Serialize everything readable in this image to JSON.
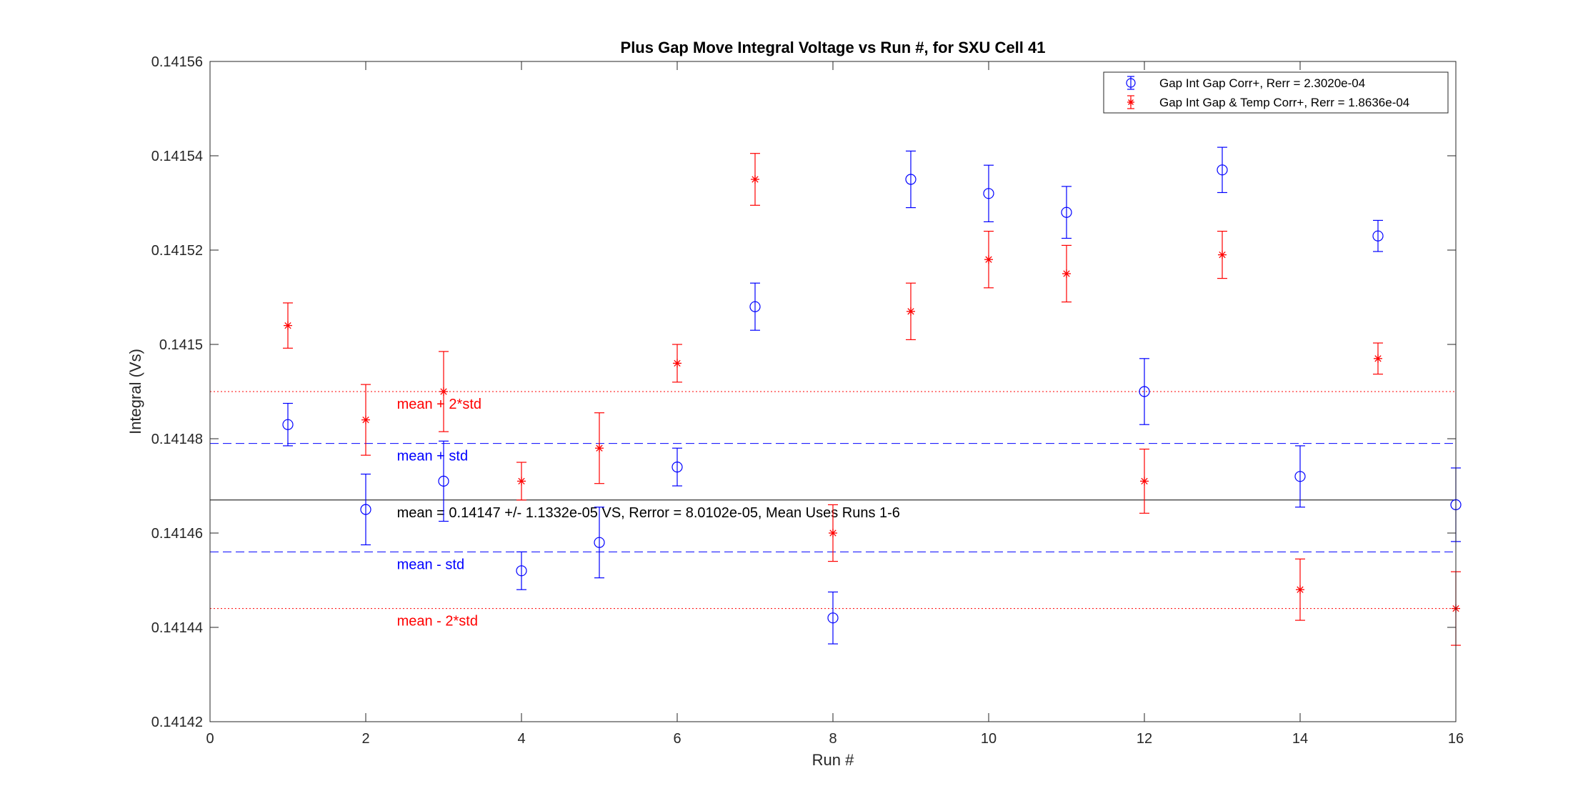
{
  "chart_data": {
    "type": "scatter",
    "title": "Plus Gap Move Integral Voltage vs Run #, for SXU Cell 41",
    "xlabel": "Run #",
    "ylabel": "Integral (Vs)",
    "xlim": [
      0,
      16
    ],
    "ylim": [
      0.14142,
      0.14156
    ],
    "xticks": [
      0,
      2,
      4,
      6,
      8,
      10,
      12,
      14,
      16
    ],
    "yticks": [
      0.14142,
      0.14144,
      0.14146,
      0.14148,
      0.1415,
      0.14152,
      0.14154,
      0.14156
    ],
    "ytick_labels": [
      "0.14142",
      "0.14144",
      "0.14146",
      "0.14148",
      "0.1415",
      "0.14152",
      "0.14154",
      "0.14156"
    ],
    "grid": false,
    "legend_position": "top-right",
    "series": [
      {
        "name": "Gap Int Gap Corr+, Rerr = 2.3020e-04",
        "marker": "circle",
        "color": "#0000ff",
        "x": [
          1,
          2,
          3,
          4,
          5,
          6,
          7,
          8,
          9,
          10,
          11,
          12,
          13,
          14,
          15,
          16
        ],
        "y": [
          0.141483,
          0.141465,
          0.141471,
          0.141452,
          0.141458,
          0.141474,
          0.141508,
          0.141442,
          0.141535,
          0.141532,
          0.141528,
          0.14149,
          0.141537,
          0.141472,
          0.141523,
          0.141466
        ],
        "yerr": [
          4.5e-06,
          7.5e-06,
          8.5e-06,
          4e-06,
          7.5e-06,
          4e-06,
          5e-06,
          5.5e-06,
          6e-06,
          6e-06,
          5.5e-06,
          7e-06,
          4.8e-06,
          6.5e-06,
          3.3e-06,
          7.8e-06
        ]
      },
      {
        "name": "Gap Int Gap & Temp  Corr+, Rerr = 1.8636e-04",
        "marker": "asterisk",
        "color": "#ff0000",
        "x": [
          1,
          2,
          3,
          4,
          5,
          6,
          7,
          8,
          11,
          12,
          13,
          14,
          15,
          16,
          9,
          10
        ],
        "y": [
          0.141504,
          0.141484,
          0.14149,
          0.141471,
          0.141478,
          0.141496,
          0.141535,
          0.14146,
          0.141515,
          0.141471,
          0.141519,
          0.141448,
          0.141497,
          0.141444,
          0.141507,
          0.141518
        ],
        "yerr": [
          4.8e-06,
          7.5e-06,
          8.5e-06,
          4e-06,
          7.5e-06,
          4e-06,
          5.5e-06,
          6e-06,
          6e-06,
          6.8e-06,
          5e-06,
          6.5e-06,
          3.3e-06,
          7.8e-06,
          6e-06,
          6e-06
        ]
      }
    ],
    "reference_lines": [
      {
        "label": "mean + 2*std",
        "y": 0.14149,
        "style": "dotted",
        "color": "#ff0000"
      },
      {
        "label": "mean + std",
        "y": 0.141479,
        "style": "dashed",
        "color": "#0000ff"
      },
      {
        "label": "mean = 0.14147 +/- 1.1332e-05 VS, Rerror = 8.0102e-05, Mean Uses Runs 1-6",
        "y": 0.141467,
        "style": "solid",
        "color": "#000000"
      },
      {
        "label": "mean - std",
        "y": 0.141456,
        "style": "dashed",
        "color": "#0000ff"
      },
      {
        "label": "mean - 2*std",
        "y": 0.141444,
        "style": "dotted",
        "color": "#ff0000"
      }
    ]
  }
}
